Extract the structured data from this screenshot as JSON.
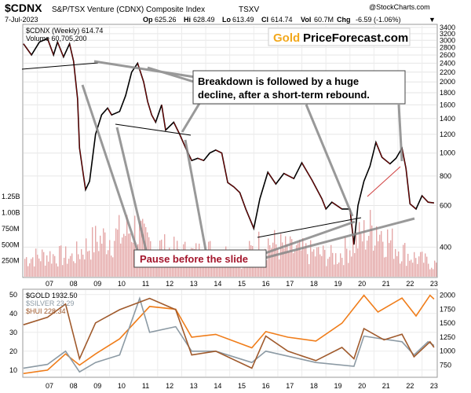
{
  "header": {
    "symbol": "$CDNX",
    "name": "S&P/TSX Venture (CDNX) Composite Index",
    "exchange": "TSXV",
    "date": "7-Jul-2023",
    "op_label": "Op",
    "op": "625.26",
    "hi_label": "Hi",
    "hi": "628.49",
    "lo_label": "Lo",
    "lo": "613.49",
    "cl_label": "Cl",
    "cl": "614.74",
    "vol_label": "Vol",
    "vol": "60.7M",
    "chg_label": "Chg",
    "chg": "-6.59 (-1.06%)",
    "chg_marker": "▼",
    "copyright": "@StockCharts.com"
  },
  "legend": {
    "main": "$CDNX (Weekly) 614.74",
    "volume": "Volume 60,705,200",
    "gold": "$GOLD 1932.50",
    "silver": "$SILVER 23.29",
    "hui": "$HUI 228.34"
  },
  "logo": {
    "part1": "Gold",
    "part2": "PriceForecast.com"
  },
  "annotations": {
    "breakdown": "Breakdown is followed by a huge decline, after a short-term rebound.",
    "pause": "Pause before the slide"
  },
  "colors": {
    "price": "#000000",
    "down": "#cc0000",
    "volume": "#e5a8a8",
    "gold": "#f07d1a",
    "silver": "#8c9aa4",
    "hui": "#a05a2c",
    "logo_gold": "#f2a81d",
    "pause": "#a3162c"
  },
  "chart_data": [
    {
      "type": "line",
      "series": [
        {
          "name": "$CDNX (Weekly)",
          "points": [
            [
              "2006-06",
              2900
            ],
            [
              "2006-10",
              2600
            ],
            [
              "2007-02",
              2950
            ],
            [
              "2007-06",
              3050
            ],
            [
              "2007-09",
              2600
            ],
            [
              "2007-11",
              2950
            ],
            [
              "2008-02",
              2550
            ],
            [
              "2008-05",
              2900
            ],
            [
              "2008-07",
              2450
            ],
            [
              "2008-09",
              1700
            ],
            [
              "2008-10",
              1050
            ],
            [
              "2008-12",
              800
            ],
            [
              "2009-01",
              700
            ],
            [
              "2009-03",
              760
            ],
            [
              "2009-06",
              1200
            ],
            [
              "2009-09",
              1450
            ],
            [
              "2009-12",
              1550
            ],
            [
              "2010-02",
              1450
            ],
            [
              "2010-06",
              1500
            ],
            [
              "2010-09",
              1750
            ],
            [
              "2010-12",
              2200
            ],
            [
              "2011-03",
              2400
            ],
            [
              "2011-06",
              2000
            ],
            [
              "2011-08",
              1650
            ],
            [
              "2011-10",
              1450
            ],
            [
              "2011-12",
              1350
            ],
            [
              "2012-03",
              1600
            ],
            [
              "2012-05",
              1250
            ],
            [
              "2012-09",
              1350
            ],
            [
              "2012-12",
              1200
            ],
            [
              "2013-03",
              1050
            ],
            [
              "2013-06",
              930
            ],
            [
              "2013-09",
              950
            ],
            [
              "2013-12",
              930
            ],
            [
              "2014-03",
              1000
            ],
            [
              "2014-06",
              1030
            ],
            [
              "2014-09",
              1000
            ],
            [
              "2014-12",
              750
            ],
            [
              "2015-03",
              720
            ],
            [
              "2015-06",
              680
            ],
            [
              "2015-09",
              580
            ],
            [
              "2016-01",
              480
            ],
            [
              "2016-04",
              640
            ],
            [
              "2016-08",
              830
            ],
            [
              "2016-12",
              740
            ],
            [
              "2017-04",
              820
            ],
            [
              "2017-09",
              780
            ],
            [
              "2018-01",
              910
            ],
            [
              "2018-06",
              770
            ],
            [
              "2018-11",
              640
            ],
            [
              "2019-01",
              580
            ],
            [
              "2019-04",
              620
            ],
            [
              "2019-09",
              580
            ],
            [
              "2020-01",
              580
            ],
            [
              "2020-03",
              410
            ],
            [
              "2020-05",
              600
            ],
            [
              "2020-08",
              760
            ],
            [
              "2020-11",
              880
            ],
            [
              "2021-02",
              1110
            ],
            [
              "2021-05",
              960
            ],
            [
              "2021-09",
              900
            ],
            [
              "2021-12",
              950
            ],
            [
              "2022-03",
              1050
            ],
            [
              "2022-05",
              860
            ],
            [
              "2022-07",
              610
            ],
            [
              "2022-10",
              580
            ],
            [
              "2023-01",
              660
            ],
            [
              "2023-04",
              620
            ],
            [
              "2023-07",
              615
            ]
          ]
        }
      ],
      "y_ticks": [
        400,
        600,
        800,
        1000,
        1200,
        1400,
        1600,
        1800,
        2000,
        2200,
        2400,
        2600,
        2800,
        3000,
        3200,
        3400
      ],
      "y_scale": "log",
      "volume_ticks": [
        "250M",
        "500M",
        "750M",
        "1.00B",
        "1.25B"
      ],
      "volume_points": [
        [
          "2006-06",
          350
        ],
        [
          "2007-06",
          420
        ],
        [
          "2008-06",
          380
        ],
        [
          "2008-11",
          520
        ],
        [
          "2009-06",
          700
        ],
        [
          "2010-06",
          800
        ],
        [
          "2011-01",
          950
        ],
        [
          "2011-06",
          700
        ],
        [
          "2012-06",
          520
        ],
        [
          "2013-06",
          450
        ],
        [
          "2014-06",
          520
        ],
        [
          "2015-06",
          330
        ],
        [
          "2016-06",
          700
        ],
        [
          "2017-06",
          520
        ],
        [
          "2018-06",
          460
        ],
        [
          "2019-06",
          380
        ],
        [
          "2020-06",
          750
        ],
        [
          "2021-02",
          1000
        ],
        [
          "2021-08",
          700
        ],
        [
          "2022-06",
          420
        ],
        [
          "2023-06",
          250
        ]
      ],
      "x_ticks": [
        "07",
        "08",
        "09",
        "10",
        "11",
        "12",
        "13",
        "14",
        "15",
        "16",
        "17",
        "18",
        "19",
        "20",
        "21",
        "22",
        "23"
      ]
    },
    {
      "type": "line",
      "series": [
        {
          "name": "$GOLD",
          "axis": "right",
          "points": [
            [
              "2006-06",
              600
            ],
            [
              "2007-06",
              660
            ],
            [
              "2008-03",
              950
            ],
            [
              "2008-10",
              750
            ],
            [
              "2009-06",
              950
            ],
            [
              "2010-06",
              1220
            ],
            [
              "2011-09",
              1800
            ],
            [
              "2012-10",
              1750
            ],
            [
              "2013-06",
              1250
            ],
            [
              "2014-06",
              1300
            ],
            [
              "2015-12",
              1060
            ],
            [
              "2016-07",
              1350
            ],
            [
              "2017-06",
              1250
            ],
            [
              "2018-08",
              1180
            ],
            [
              "2019-09",
              1500
            ],
            [
              "2020-08",
              2000
            ],
            [
              "2021-03",
              1700
            ],
            [
              "2022-03",
              1950
            ],
            [
              "2022-10",
              1630
            ],
            [
              "2023-05",
              2000
            ],
            [
              "2023-07",
              1932
            ]
          ]
        },
        {
          "name": "$SILVER",
          "axis": "left",
          "points": [
            [
              "2006-06",
              11
            ],
            [
              "2007-06",
              13
            ],
            [
              "2008-03",
              20
            ],
            [
              "2008-10",
              9
            ],
            [
              "2009-06",
              14
            ],
            [
              "2010-06",
              18
            ],
            [
              "2011-04",
              48
            ],
            [
              "2011-09",
              30
            ],
            [
              "2012-10",
              33
            ],
            [
              "2013-06",
              20
            ],
            [
              "2014-06",
              20
            ],
            [
              "2015-12",
              14
            ],
            [
              "2016-07",
              20
            ],
            [
              "2018-08",
              14
            ],
            [
              "2020-03",
              12
            ],
            [
              "2020-08",
              28
            ],
            [
              "2021-02",
              27
            ],
            [
              "2022-03",
              25
            ],
            [
              "2022-09",
              18
            ],
            [
              "2023-04",
              25
            ],
            [
              "2023-07",
              23
            ]
          ]
        },
        {
          "name": "$HUI",
          "axis": "left",
          "points": [
            [
              "2006-06",
              34
            ],
            [
              "2007-06",
              38
            ],
            [
              "2008-03",
              45
            ],
            [
              "2008-10",
              16
            ],
            [
              "2009-06",
              35
            ],
            [
              "2010-06",
              42
            ],
            [
              "2011-09",
              48
            ],
            [
              "2012-10",
              42
            ],
            [
              "2013-06",
              18
            ],
            [
              "2014-06",
              20
            ],
            [
              "2015-12",
              11
            ],
            [
              "2016-07",
              28
            ],
            [
              "2017-06",
              20
            ],
            [
              "2018-08",
              15
            ],
            [
              "2019-09",
              22
            ],
            [
              "2020-03",
              16
            ],
            [
              "2020-08",
              32
            ],
            [
              "2021-06",
              26
            ],
            [
              "2022-03",
              29
            ],
            [
              "2022-09",
              17
            ],
            [
              "2023-05",
              25
            ],
            [
              "2023-07",
              22
            ]
          ]
        }
      ],
      "y_ticks_left": [
        10,
        20,
        30,
        40,
        50
      ],
      "y_ticks_right": [
        750,
        1000,
        1250,
        1500,
        1750,
        2000
      ],
      "x_ticks": [
        "07",
        "08",
        "09",
        "10",
        "11",
        "12",
        "13",
        "14",
        "15",
        "16",
        "17",
        "18",
        "19",
        "20",
        "21",
        "22",
        "23"
      ]
    }
  ]
}
